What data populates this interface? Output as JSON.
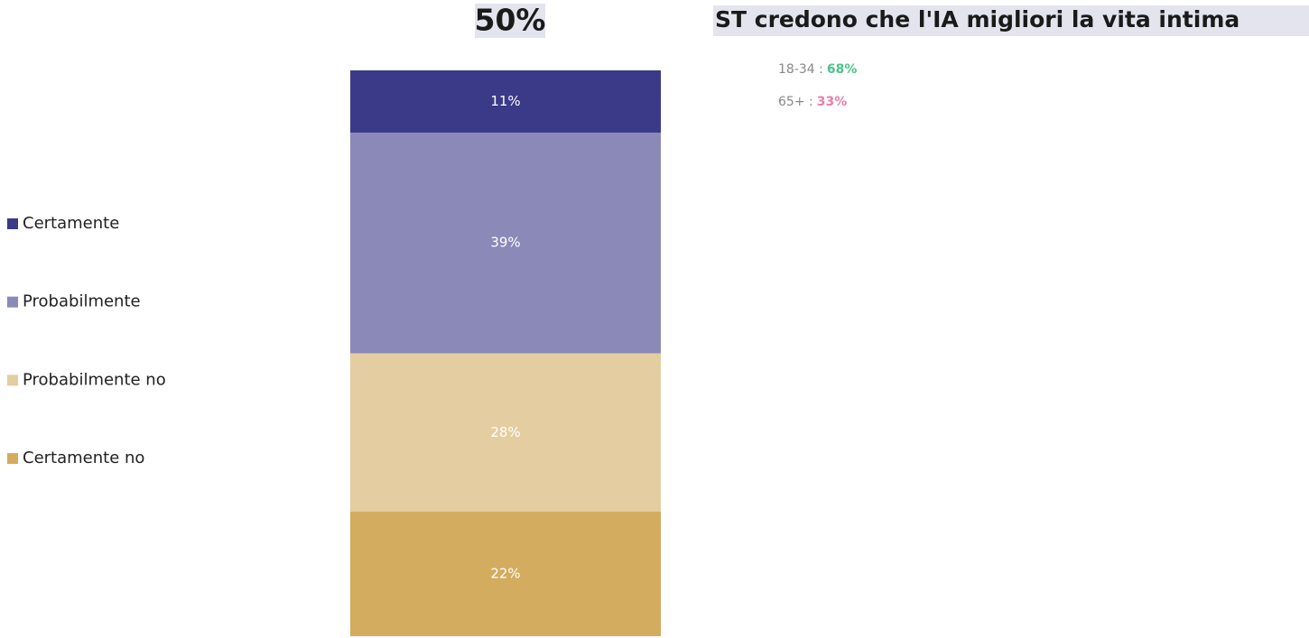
{
  "chart_data": {
    "type": "stacked_bar",
    "headline": "50%",
    "subtitle": "ST credono che l'IA migliori la vita intima",
    "annotations": [
      {
        "group": "18-34 :",
        "value": "68%",
        "color": "#4cc38a"
      },
      {
        "group": "65+ :",
        "value": "33%",
        "color": "#e97fa8"
      }
    ],
    "categories": [
      null
    ],
    "ylim": [
      0,
      100
    ],
    "series": [
      {
        "name": "Certamente",
        "color": "#3a3a88",
        "values": [
          11
        ],
        "value_labels": [
          "11%"
        ]
      },
      {
        "name": "Probabilmente",
        "color": "#8a89b8",
        "values": [
          39
        ],
        "value_labels": [
          "39%"
        ]
      },
      {
        "name": "Probabilmente no",
        "color": "#e4cda0",
        "values": [
          28
        ],
        "value_labels": [
          "28%"
        ]
      },
      {
        "name": "Certamente no",
        "color": "#d3ac5f",
        "values": [
          22
        ],
        "value_labels": [
          "22%"
        ]
      }
    ]
  }
}
